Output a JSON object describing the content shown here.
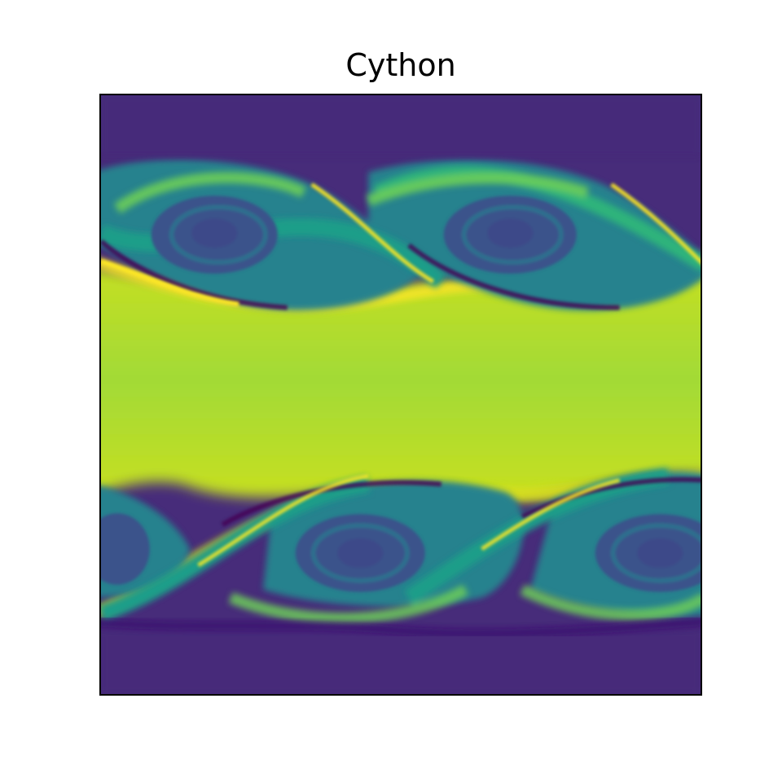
{
  "chart_data": {
    "type": "heatmap",
    "title": "Cython",
    "xlabel": "",
    "ylabel": "",
    "colormap": "viridis",
    "axes_ticks": false,
    "grid": false,
    "colors": {
      "low": "#440154",
      "mid": "#21918c",
      "high": "#fde725",
      "background": "#472e7c",
      "band": "#b5de2b"
    },
    "vortex_rows": [
      {
        "name": "upper",
        "vortex_count": 2,
        "orientation": "descending"
      },
      {
        "name": "lower",
        "vortex_count": 2,
        "orientation": "ascending"
      }
    ]
  }
}
